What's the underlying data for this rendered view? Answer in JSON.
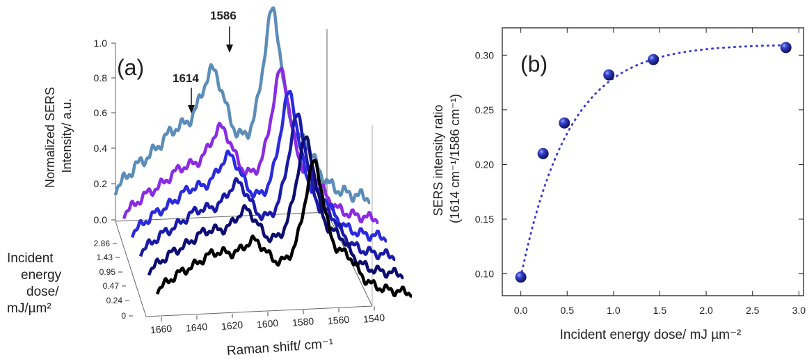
{
  "chart_data": [
    {
      "panel": "(a)",
      "type": "line",
      "peak_labels": [
        "1586",
        "1614"
      ],
      "ylabel": "Normalized SERS\nIntensity/ a.u.",
      "xlabel": "Raman shift/ cm⁻¹",
      "zlabel": "Incident\nenergy\ndose/\nmJ/µm²",
      "y_ticks": [
        "0.0",
        "0.2",
        "0.4",
        "0.6",
        "0.8",
        "1.0"
      ],
      "x_ticks": [
        "1660",
        "1640",
        "1620",
        "1600",
        "1580",
        "1560",
        "1540"
      ],
      "z_ticks": [
        "2.86",
        "1.43",
        "0.95",
        "0.47",
        "0.24",
        "0"
      ],
      "xlim": [
        1540,
        1660
      ],
      "ylim": [
        0,
        1.0
      ],
      "series": [
        {
          "dose": 2.86,
          "color": "#5b8db8",
          "peak_1586": 1.0,
          "peak_1614": 0.62
        },
        {
          "dose": 1.43,
          "color": "#8a2be2",
          "peak_1586": 1.0,
          "peak_1614": 0.55
        },
        {
          "dose": 0.95,
          "color": "#2a2adf",
          "peak_1586": 1.0,
          "peak_1614": 0.5
        },
        {
          "dose": 0.47,
          "color": "#1a1aa8",
          "peak_1586": 1.0,
          "peak_1614": 0.45
        },
        {
          "dose": 0.24,
          "color": "#0d0d70",
          "peak_1586": 1.0,
          "peak_1614": 0.4
        },
        {
          "dose": 0,
          "color": "#000000",
          "peak_1586": 1.0,
          "peak_1614": 0.32
        }
      ]
    },
    {
      "panel": "(b)",
      "type": "scatter",
      "xlabel": "Incident energy dose/ mJ µm⁻²",
      "ylabel_line1": "SERS intensity ratio",
      "ylabel_line2": "(1614 cm⁻¹/1586 cm⁻¹)",
      "x": [
        0,
        0.24,
        0.47,
        0.95,
        1.43,
        2.86
      ],
      "y": [
        0.097,
        0.21,
        0.238,
        0.282,
        0.296,
        0.307
      ],
      "xlim": [
        -0.2,
        3.05
      ],
      "ylim": [
        0.08,
        0.325
      ],
      "x_ticks": [
        "0.0",
        "0.5",
        "1.0",
        "1.5",
        "2.0",
        "2.5",
        "3.0"
      ],
      "y_ticks": [
        "0.10",
        "0.15",
        "0.20",
        "0.25",
        "0.30"
      ],
      "marker_color": "#1f1fa0",
      "fit_line": "dotted"
    }
  ]
}
